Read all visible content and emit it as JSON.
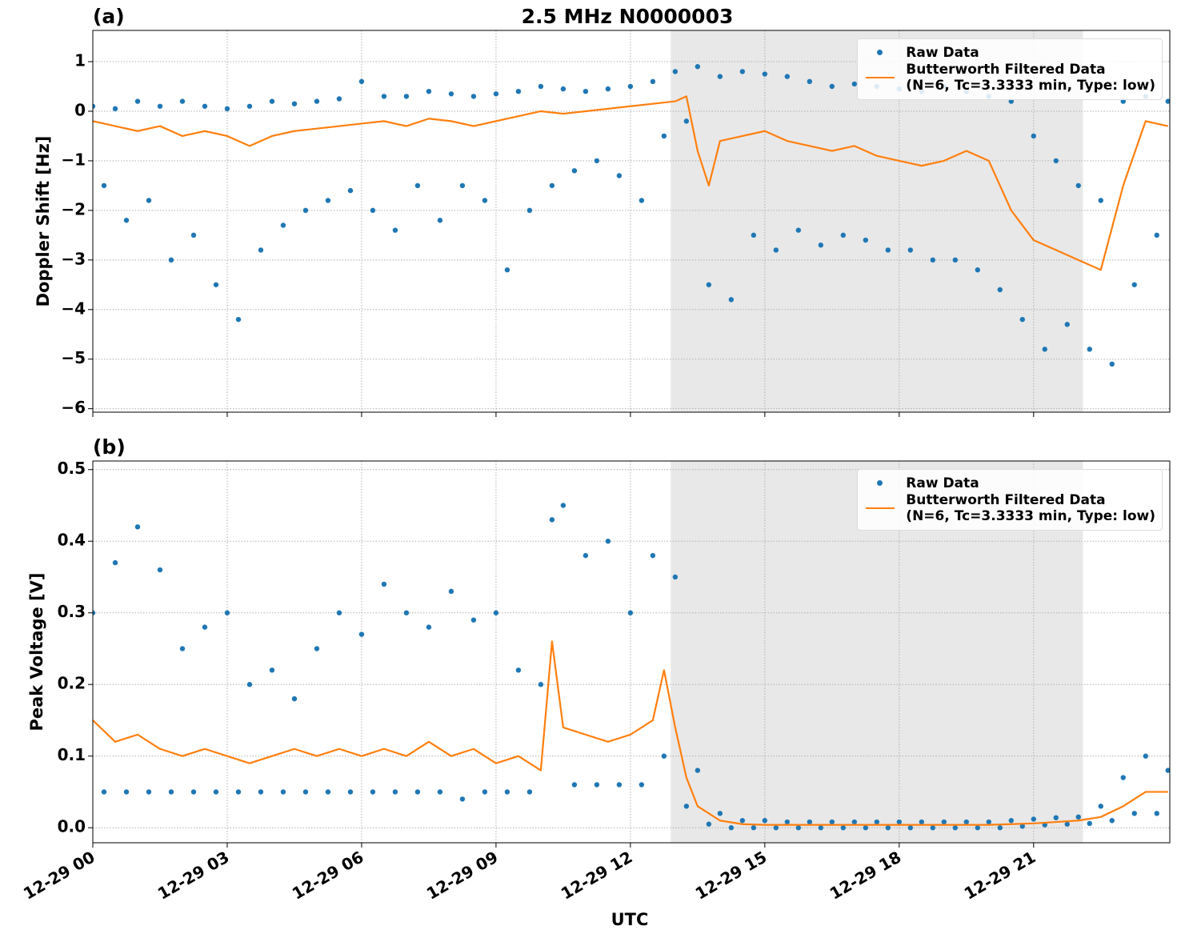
{
  "chart_data": [
    {
      "type": "scatter",
      "panel_label": "(a)",
      "title": "2.5 MHz N0000003",
      "ylabel": "Doppler Shift [Hz]",
      "xlim": [
        0,
        24.04
      ],
      "xticks": [
        0,
        3,
        6,
        9,
        12,
        15,
        18,
        21
      ],
      "ylim": [
        -6.07,
        1.63
      ],
      "yticks": [
        1,
        0,
        {
          "value": -1,
          "label": "−1"
        },
        {
          "value": -2,
          "label": "−2"
        },
        {
          "value": -3,
          "label": "−3"
        },
        {
          "value": -4,
          "label": "−4"
        },
        {
          "value": -5,
          "label": "−5"
        },
        {
          "value": -6,
          "label": "−6"
        }
      ],
      "grid": true,
      "legend": "upper right",
      "shade": [
        12.9,
        22.1
      ],
      "shade_color": "#e8e8e8",
      "series": [
        {
          "name": "Raw Data",
          "type": "scatter",
          "color": "#1f77b4",
          "x": [
            0,
            0.25,
            0.5,
            0.75,
            1,
            1.25,
            1.5,
            1.75,
            2,
            2.25,
            2.5,
            2.75,
            3,
            3.25,
            3.5,
            3.75,
            4,
            4.25,
            4.5,
            4.75,
            5,
            5.25,
            5.5,
            5.75,
            6,
            6.25,
            6.5,
            6.75,
            7,
            7.25,
            7.5,
            7.75,
            8,
            8.25,
            8.5,
            8.75,
            9,
            9.25,
            9.5,
            9.75,
            10,
            10.25,
            10.5,
            10.75,
            11,
            11.25,
            11.5,
            11.75,
            12,
            12.25,
            12.5,
            12.75,
            13,
            13.25,
            13.5,
            13.75,
            14,
            14.25,
            14.5,
            14.75,
            15,
            15.25,
            15.5,
            15.75,
            16,
            16.25,
            16.5,
            16.75,
            17,
            17.25,
            17.5,
            17.75,
            18,
            18.25,
            18.5,
            18.75,
            19,
            19.25,
            19.5,
            19.75,
            20,
            20.25,
            20.5,
            20.75,
            21,
            21.25,
            21.5,
            21.75,
            22,
            22.25,
            22.5,
            22.75,
            23,
            23.25,
            23.5,
            23.75,
            24
          ],
          "values": [
            0.1,
            -1.5,
            0.05,
            -2.2,
            0.2,
            -1.8,
            0.1,
            -3,
            0.2,
            -2.5,
            0.1,
            -3.5,
            0.05,
            -4.2,
            0.1,
            -2.8,
            0.2,
            -2.3,
            0.15,
            -2,
            0.2,
            -1.8,
            0.25,
            -1.6,
            0.6,
            -2,
            0.3,
            -2.4,
            0.3,
            -1.5,
            0.4,
            -2.2,
            0.35,
            -1.5,
            0.3,
            -1.8,
            0.35,
            -3.2,
            0.4,
            -2,
            0.5,
            -1.5,
            0.45,
            -1.2,
            0.4,
            -1.0,
            0.45,
            -1.3,
            0.5,
            -1.8,
            0.6,
            -0.5,
            0.8,
            -0.2,
            0.9,
            -3.5,
            0.7,
            -3.8,
            0.8,
            -2.5,
            0.75,
            -2.8,
            0.7,
            -2.4,
            0.6,
            -2.7,
            0.5,
            -2.5,
            0.55,
            -2.6,
            0.5,
            -2.8,
            0.45,
            -2.8,
            0.4,
            -3.0,
            0.5,
            -3.0,
            0.4,
            -3.2,
            0.3,
            -3.6,
            0.2,
            -4.2,
            -0.5,
            -4.8,
            -1.0,
            -4.3,
            -1.5,
            -4.8,
            -1.8,
            -5.1,
            0.2,
            -3.5,
            0.3,
            -2.5,
            0.2
          ]
        },
        {
          "name": "Butterworth Filtered Data\n(N=6, Tc=3.3333 min, Type: low)",
          "type": "line",
          "color": "#ff7f0e",
          "x": [
            0,
            0.5,
            1,
            1.5,
            2,
            2.5,
            3,
            3.5,
            4,
            4.5,
            5,
            5.5,
            6,
            6.5,
            7,
            7.5,
            8,
            8.5,
            9,
            9.5,
            10,
            10.5,
            11,
            11.5,
            12,
            12.5,
            13,
            13.25,
            13.5,
            13.75,
            14,
            14.5,
            15,
            15.5,
            16,
            16.5,
            17,
            17.5,
            18,
            18.5,
            19,
            19.5,
            20,
            20.5,
            21,
            21.5,
            22,
            22.5,
            23,
            23.5,
            24
          ],
          "values": [
            -0.2,
            -0.3,
            -0.4,
            -0.3,
            -0.5,
            -0.4,
            -0.5,
            -0.7,
            -0.5,
            -0.4,
            -0.35,
            -0.3,
            -0.25,
            -0.2,
            -0.3,
            -0.15,
            -0.2,
            -0.3,
            -0.2,
            -0.1,
            0.0,
            -0.05,
            0.0,
            0.05,
            0.1,
            0.15,
            0.2,
            0.3,
            -0.8,
            -1.5,
            -0.6,
            -0.5,
            -0.4,
            -0.6,
            -0.7,
            -0.8,
            -0.7,
            -0.9,
            -1.0,
            -1.1,
            -1.0,
            -0.8,
            -1.0,
            -2.0,
            -2.6,
            -2.8,
            -3.0,
            -3.2,
            -1.5,
            -0.2,
            -0.3
          ]
        }
      ]
    },
    {
      "type": "scatter",
      "panel_label": "(b)",
      "ylabel": "Peak Voltage [V]",
      "xlabel": "UTC",
      "xlim": [
        0,
        24.04
      ],
      "xticks": [
        {
          "value": 0,
          "label": "12-29 00"
        },
        {
          "value": 3,
          "label": "12-29 03"
        },
        {
          "value": 6,
          "label": "12-29 06"
        },
        {
          "value": 9,
          "label": "12-29 09"
        },
        {
          "value": 12,
          "label": "12-29 12"
        },
        {
          "value": 15,
          "label": "12-29 15"
        },
        {
          "value": 18,
          "label": "12-29 18"
        },
        {
          "value": 21,
          "label": "12-29 21"
        }
      ],
      "ylim": [
        -0.021,
        0.512
      ],
      "yticks": [
        {
          "value": 0,
          "label": "0.0"
        },
        0.1,
        0.2,
        0.3,
        0.4,
        0.5
      ],
      "grid": true,
      "legend": "upper right",
      "shade": [
        12.9,
        22.1
      ],
      "shade_color": "#e8e8e8",
      "series": [
        {
          "name": "Raw Data",
          "type": "scatter",
          "color": "#1f77b4",
          "x": [
            0,
            0.25,
            0.5,
            0.75,
            1,
            1.25,
            1.5,
            1.75,
            2,
            2.25,
            2.5,
            2.75,
            3,
            3.25,
            3.5,
            3.75,
            4,
            4.25,
            4.5,
            4.75,
            5,
            5.25,
            5.5,
            5.75,
            6,
            6.25,
            6.5,
            6.75,
            7,
            7.25,
            7.5,
            7.75,
            8,
            8.25,
            8.5,
            8.75,
            9,
            9.25,
            9.5,
            9.75,
            10,
            10.25,
            10.5,
            10.75,
            11,
            11.25,
            11.5,
            11.75,
            12,
            12.25,
            12.5,
            12.75,
            13,
            13.25,
            13.5,
            13.75,
            14,
            14.25,
            14.5,
            14.75,
            15,
            15.25,
            15.5,
            15.75,
            16,
            16.25,
            16.5,
            16.75,
            17,
            17.25,
            17.5,
            17.75,
            18,
            18.25,
            18.5,
            18.75,
            19,
            19.25,
            19.5,
            19.75,
            20,
            20.25,
            20.5,
            20.75,
            21,
            21.25,
            21.5,
            21.75,
            22,
            22.25,
            22.5,
            22.75,
            23,
            23.25,
            23.5,
            23.75,
            24
          ],
          "values": [
            0.3,
            0.05,
            0.37,
            0.05,
            0.42,
            0.05,
            0.36,
            0.05,
            0.25,
            0.05,
            0.28,
            0.05,
            0.3,
            0.05,
            0.2,
            0.05,
            0.22,
            0.05,
            0.18,
            0.05,
            0.25,
            0.05,
            0.3,
            0.05,
            0.27,
            0.05,
            0.34,
            0.05,
            0.3,
            0.05,
            0.28,
            0.05,
            0.33,
            0.04,
            0.29,
            0.05,
            0.3,
            0.05,
            0.22,
            0.05,
            0.2,
            0.43,
            0.45,
            0.06,
            0.38,
            0.06,
            0.4,
            0.06,
            0.3,
            0.06,
            0.38,
            0.1,
            0.35,
            0.03,
            0.08,
            0.005,
            0.02,
            0.0,
            0.01,
            0.0,
            0.01,
            0.0,
            0.008,
            0.0,
            0.008,
            0.0,
            0.008,
            0.0,
            0.008,
            0.0,
            0.008,
            0.0,
            0.008,
            0.0,
            0.008,
            0.0,
            0.008,
            0.0,
            0.008,
            0.0,
            0.008,
            0.0,
            0.01,
            0.002,
            0.012,
            0.004,
            0.014,
            0.005,
            0.015,
            0.006,
            0.03,
            0.01,
            0.07,
            0.02,
            0.1,
            0.02,
            0.08
          ]
        },
        {
          "name": "Butterworth Filtered Data\n(N=6, Tc=3.3333 min, Type: low)",
          "type": "line",
          "color": "#ff7f0e",
          "x": [
            0,
            0.5,
            1,
            1.5,
            2,
            2.5,
            3,
            3.5,
            4,
            4.5,
            5,
            5.5,
            6,
            6.5,
            7,
            7.5,
            8,
            8.5,
            9,
            9.5,
            10,
            10.25,
            10.5,
            11,
            11.5,
            12,
            12.5,
            12.75,
            13,
            13.25,
            13.5,
            14,
            14.5,
            15,
            16,
            17,
            18,
            19,
            20,
            21,
            21.5,
            22,
            22.5,
            23,
            23.5,
            24
          ],
          "values": [
            0.15,
            0.12,
            0.13,
            0.11,
            0.1,
            0.11,
            0.1,
            0.09,
            0.1,
            0.11,
            0.1,
            0.11,
            0.1,
            0.11,
            0.1,
            0.12,
            0.1,
            0.11,
            0.09,
            0.1,
            0.08,
            0.26,
            0.14,
            0.13,
            0.12,
            0.13,
            0.15,
            0.22,
            0.14,
            0.07,
            0.03,
            0.01,
            0.005,
            0.004,
            0.004,
            0.004,
            0.004,
            0.004,
            0.004,
            0.006,
            0.008,
            0.01,
            0.015,
            0.03,
            0.05,
            0.05
          ]
        }
      ]
    }
  ]
}
